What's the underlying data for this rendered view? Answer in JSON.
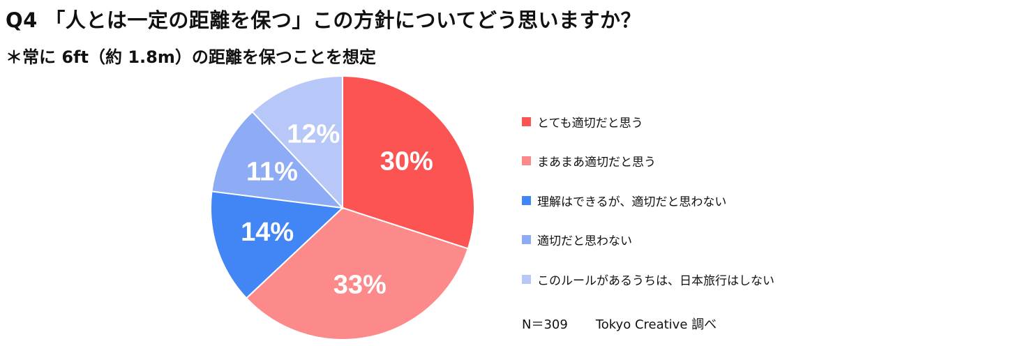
{
  "title": "Q4 「人とは一定の距離を保つ」この方針についてどう思いますか？",
  "subtitle": "＊常に 6ft（約 1.8m）の距離を保つことを想定",
  "chart_data": {
    "type": "pie",
    "title": "Q4 「人とは一定の距離を保つ」この方針についてどう思いますか？",
    "subtitle": "＊常に 6ft（約 1.8m）の距離を保つことを想定",
    "legend_position": "right",
    "slices": [
      {
        "label": "とても適切だと思う",
        "value": 30,
        "display": "30%",
        "color": "#fc5353"
      },
      {
        "label": "まあまあ適切だと思う",
        "value": 33,
        "display": "33%",
        "color": "#fd8a8a"
      },
      {
        "label": "理解はできるが、適切だと思わない",
        "value": 14,
        "display": "14%",
        "color": "#4285f4"
      },
      {
        "label": "適切だと思わない",
        "value": 11,
        "display": "11%",
        "color": "#8dacf5"
      },
      {
        "label": "このルールがあるうちは、日本旅行はしない",
        "value": 12,
        "display": "12%",
        "color": "#b7c7f7"
      }
    ]
  },
  "footer": {
    "sample": "N＝309",
    "source": "Tokyo Creative 調べ"
  }
}
